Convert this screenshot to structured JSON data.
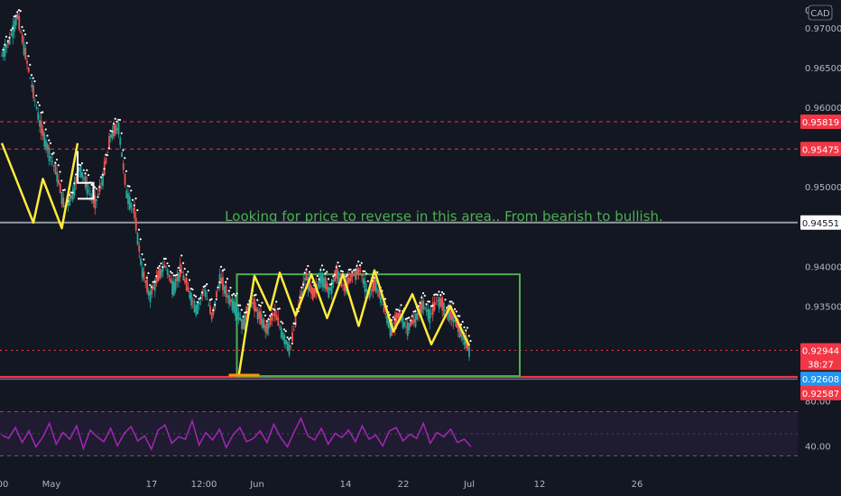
{
  "currency_badge": "CAD",
  "top_axis_value": "0",
  "annotation": "Looking for price to reverse in this area.. From bearish to bullish.",
  "price_ticks": [
    0.97,
    0.965,
    0.96,
    0.95,
    0.94,
    0.935
  ],
  "price_tick_labels": [
    "0.97000",
    "0.96500",
    "0.96000",
    "0.95000",
    "0.94000",
    "0.93500"
  ],
  "price_tags": [
    {
      "label": "0.95819",
      "value": 0.95819,
      "color": "#f23645",
      "text_color": "#ffffff"
    },
    {
      "label": "0.95475",
      "value": 0.95475,
      "color": "#f23645",
      "text_color": "#ffffff"
    },
    {
      "label": "0.94551",
      "value": 0.94551,
      "color": "#ffffff",
      "text_color": "#131722"
    },
    {
      "label": "0.92944",
      "value": 0.92944,
      "color": "#f23645",
      "text_color": "#ffffff"
    },
    {
      "label": "0.92608",
      "value": 0.92608,
      "color": "#2196f3",
      "text_color": "#ffffff"
    },
    {
      "label": "0.92587",
      "value": 0.92587,
      "color": "#f23645",
      "text_color": "#ffffff"
    }
  ],
  "countdown": "38:27",
  "x_tick_labels": [
    "00",
    "May",
    "17",
    "12:00",
    "Jun",
    "14",
    "22",
    "Jul",
    "12",
    "26"
  ],
  "rsi_tick_labels": [
    "80.00",
    "40.00"
  ],
  "colors": {
    "background": "#131722",
    "resistance_line": "#f23645",
    "mid_line": "#9598a1",
    "support_line": "#f23645",
    "box": "#4caf50",
    "zigzag": "#ffeb3b",
    "trend_dots": "#ffffff",
    "rsi": "#9c27b0",
    "rsi_band": "#2a1f3d"
  },
  "chart_data": [
    {
      "type": "line",
      "title": "",
      "xlabel": "",
      "ylabel": "",
      "x_axis_ticks": [
        "00",
        "May",
        "17",
        "12:00",
        "Jun",
        "14",
        "22",
        "Jul",
        "12",
        "26"
      ],
      "ylim": [
        0.9245,
        0.9735
      ],
      "grid": false,
      "series": [
        {
          "values": [
            0.9665,
            0.9685,
            0.9715,
            0.9668,
            0.962,
            0.9575,
            0.9545,
            0.9518,
            0.9475,
            0.9488,
            0.9525,
            0.9498,
            0.9478,
            0.9512,
            0.9565,
            0.9575,
            0.9492,
            0.9468,
            0.9395,
            0.9362,
            0.9385,
            0.9402,
            0.9372,
            0.9395,
            0.9368,
            0.9345,
            0.9372,
            0.9335,
            0.9385,
            0.9362,
            0.9348,
            0.9325,
            0.9358,
            0.9338,
            0.932,
            0.9342,
            0.9315,
            0.9295,
            0.9345,
            0.9388,
            0.9362,
            0.9388,
            0.9368,
            0.9392,
            0.9372,
            0.9388,
            0.9395,
            0.9365,
            0.9378,
            0.9348,
            0.9318,
            0.934,
            0.9322,
            0.9332,
            0.9352,
            0.9338,
            0.9358,
            0.9345,
            0.9335,
            0.9315,
            0.9294
          ]
        }
      ],
      "horizontal_levels": [
        0.95819,
        0.95475,
        0.94551,
        0.92944,
        0.92608
      ],
      "zones": [
        {
          "from": 0.9262,
          "to": 0.939,
          "label": "Looking for price to reverse in this area.. From bearish to bullish."
        }
      ],
      "zigzag_segments": [
        [
          [
            0,
            0.9555
          ],
          [
            10,
            0.9455
          ],
          [
            13,
            0.951
          ],
          [
            19,
            0.9448
          ],
          [
            24,
            0.9555
          ]
        ],
        [
          [
            75,
            0.9262
          ],
          [
            80,
            0.9388
          ],
          [
            85,
            0.9345
          ],
          [
            88,
            0.9392
          ],
          [
            93,
            0.9338
          ],
          [
            98,
            0.939
          ],
          [
            103,
            0.9335
          ],
          [
            108,
            0.939
          ],
          [
            113,
            0.9325
          ],
          [
            118,
            0.9395
          ],
          [
            124,
            0.9318
          ],
          [
            130,
            0.9365
          ],
          [
            136,
            0.9302
          ],
          [
            142,
            0.935
          ],
          [
            148,
            0.93
          ]
        ]
      ]
    },
    {
      "type": "line",
      "title": "",
      "ylim": [
        20,
        100
      ],
      "y_ticks": [
        80,
        40
      ],
      "series": [
        {
          "values": [
            52,
            48,
            61,
            43,
            57,
            38,
            49,
            66,
            41,
            55,
            47,
            63,
            36,
            58,
            50,
            44,
            60,
            39,
            54,
            62,
            45,
            51,
            35,
            58,
            64,
            42,
            50,
            47,
            69,
            40,
            55,
            46,
            59,
            37,
            52,
            61,
            44,
            48,
            57,
            43,
            65,
            49,
            38,
            56,
            72,
            51,
            46,
            60,
            41,
            54,
            49,
            58,
            44,
            63,
            47,
            52,
            39,
            57,
            61,
            45,
            53,
            48,
            66,
            42,
            55,
            50,
            59,
            43,
            47,
            38
          ]
        }
      ]
    }
  ]
}
